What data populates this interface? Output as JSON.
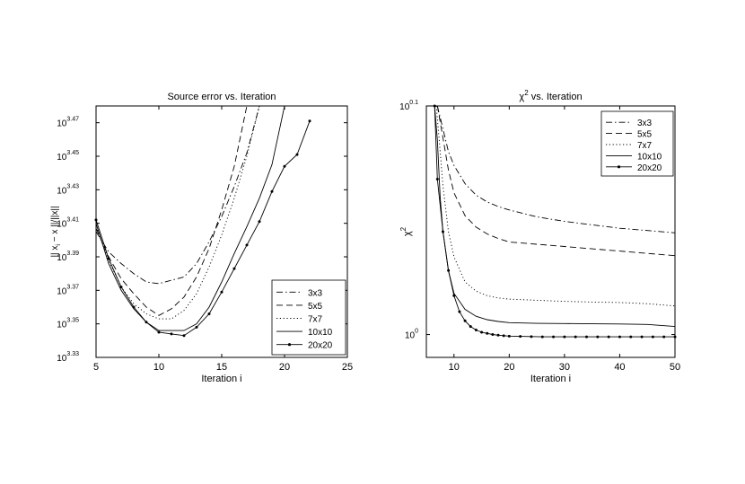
{
  "chart_data": [
    {
      "type": "line",
      "title": "Source error vs. Iteration",
      "xlabel": "Iteration i",
      "ylabel": "|| x_i − x ||/||x||",
      "xlim": [
        5,
        25
      ],
      "ylim_exponent": [
        3.33,
        3.48
      ],
      "yscale": "log10",
      "x_ticks": [
        "5",
        "10",
        "15",
        "20",
        "25"
      ],
      "y_tick_exponents": [
        "3.33",
        "3.35",
        "3.37",
        "3.39",
        "3.41",
        "3.43",
        "3.45",
        "3.47"
      ],
      "y_tick_base": "10",
      "grid": false,
      "legend_position": "bottom-right",
      "series": [
        {
          "name": "3x3",
          "style": "dashdot",
          "marker": "none",
          "x": [
            5,
            6,
            7,
            8,
            9,
            10,
            11,
            12,
            13,
            14,
            15,
            16,
            17,
            18
          ],
          "y_exponent": [
            3.405,
            3.393,
            3.386,
            3.38,
            3.375,
            3.374,
            3.376,
            3.378,
            3.386,
            3.399,
            3.414,
            3.432,
            3.452,
            3.48
          ]
        },
        {
          "name": "5x5",
          "style": "dashed",
          "marker": "none",
          "x": [
            5,
            6,
            7,
            8,
            9,
            10,
            11,
            12,
            13,
            14,
            15,
            16,
            17
          ],
          "y_exponent": [
            3.407,
            3.39,
            3.377,
            3.368,
            3.36,
            3.355,
            3.359,
            3.366,
            3.378,
            3.395,
            3.418,
            3.444,
            3.48
          ]
        },
        {
          "name": "7x7",
          "style": "dotted",
          "marker": "none",
          "x": [
            5,
            6,
            7,
            8,
            9,
            10,
            11,
            12,
            13,
            14,
            15,
            16,
            17,
            18
          ],
          "y_exponent": [
            3.408,
            3.388,
            3.372,
            3.362,
            3.356,
            3.353,
            3.353,
            3.358,
            3.368,
            3.384,
            3.403,
            3.425,
            3.45,
            3.48
          ]
        },
        {
          "name": "10x10",
          "style": "solid",
          "marker": "none",
          "x": [
            5,
            6,
            7,
            8,
            9,
            10,
            11,
            12,
            13,
            14,
            15,
            16,
            17,
            18,
            19,
            20
          ],
          "y_exponent": [
            3.41,
            3.386,
            3.37,
            3.359,
            3.351,
            3.346,
            3.346,
            3.346,
            3.35,
            3.36,
            3.375,
            3.392,
            3.408,
            3.425,
            3.445,
            3.48
          ]
        },
        {
          "name": "20x20",
          "style": "solid",
          "marker": "dot",
          "x": [
            5,
            6,
            7,
            8,
            9,
            10,
            11,
            12,
            13,
            14,
            15,
            16,
            17,
            18,
            19,
            20,
            21,
            22
          ],
          "y_exponent": [
            3.412,
            3.389,
            3.372,
            3.36,
            3.351,
            3.345,
            3.344,
            3.343,
            3.348,
            3.356,
            3.369,
            3.383,
            3.397,
            3.411,
            3.429,
            3.444,
            3.451,
            3.471
          ]
        }
      ]
    },
    {
      "type": "line",
      "title": "χ² vs. Iteration",
      "xlabel": "Iteration i",
      "ylabel": "χ²",
      "xlim": [
        5,
        50
      ],
      "ylim_exponent": [
        -0.01,
        0.1
      ],
      "yscale": "log10",
      "x_ticks": [
        "10",
        "20",
        "30",
        "40",
        "50"
      ],
      "y_tick_exponents": [
        "0",
        "0.1"
      ],
      "y_tick_base": "10",
      "grid": false,
      "legend_position": "top-right",
      "series": [
        {
          "name": "3x3",
          "style": "dashdot",
          "marker": "none",
          "x": [
            7,
            8,
            9,
            10,
            12,
            14,
            16,
            18,
            20,
            25,
            30,
            35,
            40,
            45,
            50
          ],
          "y_exponent": [
            0.1,
            0.09,
            0.08,
            0.074,
            0.066,
            0.061,
            0.058,
            0.056,
            0.0545,
            0.0515,
            0.0495,
            0.048,
            0.0465,
            0.0455,
            0.0445
          ]
        },
        {
          "name": "5x5",
          "style": "dashed",
          "marker": "none",
          "x": [
            7,
            8,
            9,
            10,
            12,
            14,
            16,
            18,
            20,
            25,
            30,
            35,
            40,
            45,
            50
          ],
          "y_exponent": [
            0.1,
            0.086,
            0.072,
            0.062,
            0.052,
            0.047,
            0.044,
            0.042,
            0.0405,
            0.0395,
            0.0385,
            0.0375,
            0.0365,
            0.0355,
            0.0345
          ]
        },
        {
          "name": "7x7",
          "style": "dotted",
          "marker": "none",
          "x": [
            6.8,
            7.5,
            8,
            9,
            10,
            12,
            14,
            16,
            18,
            20,
            25,
            30,
            35,
            40,
            45,
            50
          ],
          "y_exponent": [
            0.1,
            0.08,
            0.065,
            0.045,
            0.034,
            0.023,
            0.019,
            0.017,
            0.016,
            0.0155,
            0.015,
            0.0145,
            0.0142,
            0.014,
            0.0135,
            0.0125
          ]
        },
        {
          "name": "10x10",
          "style": "solid",
          "marker": "none",
          "x": [
            6.5,
            7,
            7.5,
            8,
            9,
            10,
            12,
            14,
            16,
            18,
            20,
            25,
            30,
            35,
            40,
            45,
            50
          ],
          "y_exponent": [
            0.1,
            0.085,
            0.06,
            0.045,
            0.028,
            0.018,
            0.011,
            0.008,
            0.0065,
            0.0057,
            0.0052,
            0.0049,
            0.0048,
            0.0047,
            0.0046,
            0.0044,
            0.0035
          ]
        },
        {
          "name": "20x20",
          "style": "solid",
          "marker": "dot",
          "x": [
            6.5,
            7,
            8,
            9,
            10,
            11,
            12,
            13,
            14,
            15,
            16,
            17,
            18,
            19,
            20,
            22,
            24,
            26,
            28,
            30,
            32,
            34,
            36,
            38,
            40,
            42,
            44,
            46,
            48,
            50
          ],
          "y_exponent": [
            0.1,
            0.068,
            0.045,
            0.028,
            0.017,
            0.01,
            0.006,
            0.0035,
            0.002,
            0.001,
            0.0005,
            0.0,
            -0.0003,
            -0.0005,
            -0.0007,
            -0.0008,
            -0.0009,
            -0.001,
            -0.001,
            -0.001,
            -0.001,
            -0.001,
            -0.001,
            -0.001,
            -0.001,
            -0.001,
            -0.001,
            -0.001,
            -0.001,
            -0.001
          ]
        }
      ]
    }
  ]
}
